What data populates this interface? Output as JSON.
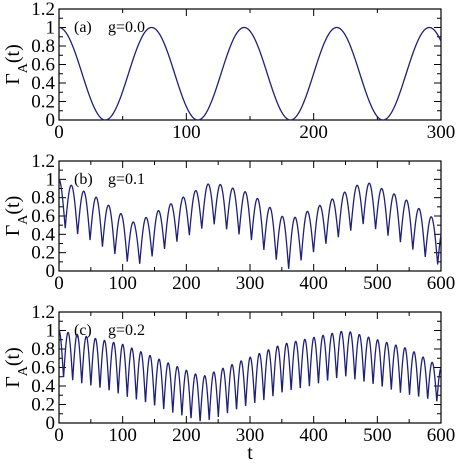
{
  "chart_data": [
    {
      "type": "line",
      "panel": "(a)",
      "annotation": "g=0.0",
      "ylabel": "Γ_A(t)",
      "xlabel": "",
      "xlim": [
        0,
        300
      ],
      "ylim": [
        0,
        1.2
      ],
      "xticks": [
        0,
        100,
        200,
        300
      ],
      "yticks": [
        0,
        0.2,
        0.4,
        0.6,
        0.8,
        1,
        1.2
      ],
      "xtick_labels": [
        "0",
        "100",
        "200",
        "300"
      ],
      "ytick_labels": [
        "0",
        "0.2",
        "0.4",
        "0.6",
        "0.8",
        "1",
        "1.2"
      ],
      "line_color": "#1f1f7a",
      "series": [
        {
          "x": [
            0,
            18.2,
            36.4,
            54.5,
            72.7,
            90.9,
            109.1,
            127.3,
            145.5,
            163.6,
            181.8,
            200,
            218.2,
            236.4,
            254.5,
            272.7,
            290.9,
            300
          ],
          "y": [
            1,
            0.5,
            0,
            0.5,
            1,
            0.5,
            0,
            0.5,
            1,
            0.5,
            0,
            0.5,
            1,
            0.5,
            0,
            0.5,
            1,
            0.87
          ]
        }
      ]
    },
    {
      "type": "line",
      "panel": "(b)",
      "annotation": "g=0.1",
      "ylabel": "Γ_A(t)",
      "xlabel": "",
      "xlim": [
        0,
        600
      ],
      "ylim": [
        0,
        1.2
      ],
      "xticks": [
        0,
        100,
        200,
        300,
        400,
        500,
        600
      ],
      "yticks": [
        0,
        0.2,
        0.4,
        0.6,
        0.8,
        1,
        1.2
      ],
      "xtick_labels": [
        "0",
        "100",
        "200",
        "300",
        "400",
        "500",
        "600"
      ],
      "ytick_labels": [
        "0",
        "0.2",
        "0.4",
        "0.6",
        "0.8",
        "1",
        "1.2"
      ],
      "line_color": "#1f1f7a",
      "series": [
        {
          "upper_envelope": {
            "x": [
              0,
              60,
              120,
              180,
              240,
              300,
              360,
              420,
              480,
              540,
              600
            ],
            "y": [
              1,
              0.8,
              0.52,
              0.75,
              0.97,
              0.85,
              0.55,
              0.75,
              0.98,
              0.8,
              0.52
            ]
          },
          "lower_envelope": {
            "x": [
              0,
              60,
              120,
              180,
              240,
              300,
              360,
              420,
              480,
              540,
              600
            ],
            "y": [
              0.5,
              0.3,
              0.05,
              0.3,
              0.52,
              0.35,
              0.02,
              0.3,
              0.52,
              0.3,
              0.05
            ]
          },
          "oscillation_period": 19.5
        }
      ]
    },
    {
      "type": "line",
      "panel": "(c)",
      "annotation": "g=0.2",
      "ylabel": "Γ_A(t)",
      "xlabel": "t",
      "xlim": [
        0,
        600
      ],
      "ylim": [
        0,
        1.2
      ],
      "xticks": [
        0,
        100,
        200,
        300,
        400,
        500,
        600
      ],
      "yticks": [
        0,
        0.2,
        0.4,
        0.6,
        0.8,
        1,
        1.2
      ],
      "xtick_labels": [
        "0",
        "100",
        "200",
        "300",
        "400",
        "500",
        "600"
      ],
      "ytick_labels": [
        "0",
        "0.2",
        "0.4",
        "0.6",
        "0.8",
        "1",
        "1.2"
      ],
      "line_color": "#1f1f7a",
      "series": [
        {
          "upper_envelope": {
            "x": [
              0,
              100,
              225,
              350,
              450,
              550,
              600
            ],
            "y": [
              1,
              0.85,
              0.5,
              0.85,
              1,
              0.8,
              0.6
            ]
          },
          "lower_envelope": {
            "x": [
              0,
              100,
              225,
              350,
              450,
              550,
              600
            ],
            "y": [
              0.5,
              0.3,
              0.0,
              0.32,
              0.5,
              0.3,
              0.22
            ]
          },
          "oscillation_period": 14.3
        }
      ]
    }
  ]
}
